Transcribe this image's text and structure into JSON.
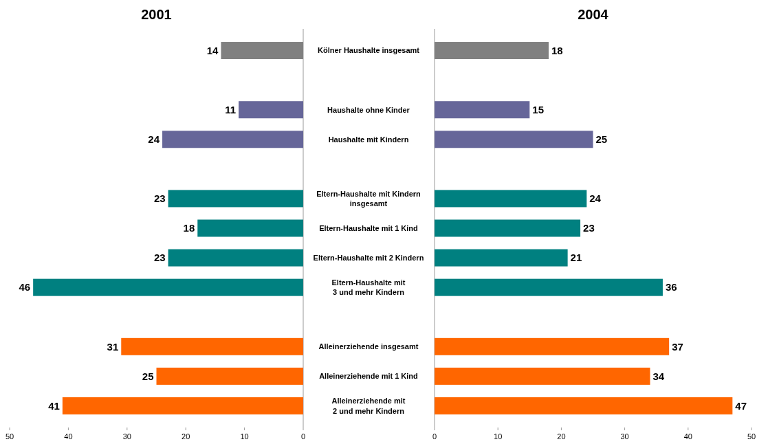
{
  "chart_data": [
    {
      "type": "bar",
      "title": "2001",
      "orientation": "horizontal",
      "tick_labels": "x",
      "data_labels": true,
      "categories": [
        null,
        null,
        null,
        null,
        null,
        null,
        null,
        null,
        null,
        null,
        null,
        null,
        null
      ],
      "values": [
        14,
        null,
        11,
        24,
        null,
        23,
        18,
        23,
        46,
        null,
        31,
        25,
        41
      ],
      "colors": [
        "#808080",
        null,
        "#666699",
        "#666699",
        null,
        "#008080",
        "#008080",
        "#008080",
        "#008080",
        null,
        "#ff6600",
        "#ff6600",
        "#ff6600"
      ],
      "xlim": [
        50,
        0
      ],
      "xticks": [
        50,
        40,
        30,
        20,
        10,
        0
      ]
    },
    {
      "type": "bar",
      "title": "2004",
      "orientation": "horizontal",
      "data_labels": true,
      "categories": [
        "Kölner Haushalte insgesamt",
        null,
        "Haushalte ohne Kinder",
        "Haushalte mit Kindern",
        null,
        "Eltern-Haushalte mit Kindern\ninsgesamt",
        "Eltern-Haushalte mit 1 Kind",
        "Eltern-Haushalte mit 2 Kindern",
        "Eltern-Haushalte mit\n3 und mehr Kindern",
        null,
        "Alleinerziehende insgesamt",
        "Alleinerziehende mit 1 Kind",
        "Alleinerziehende mit\n2 und mehr Kindern"
      ],
      "values": [
        18,
        null,
        15,
        25,
        null,
        24,
        23,
        21,
        36,
        null,
        37,
        34,
        47
      ],
      "colors": [
        "#808080",
        null,
        "#666699",
        "#666699",
        null,
        "#008080",
        "#008080",
        "#008080",
        "#008080",
        null,
        "#ff6600",
        "#ff6600",
        "#ff6600"
      ],
      "xlim": [
        0,
        50
      ],
      "xticks": [
        0,
        10,
        20,
        30,
        40,
        50
      ]
    }
  ]
}
